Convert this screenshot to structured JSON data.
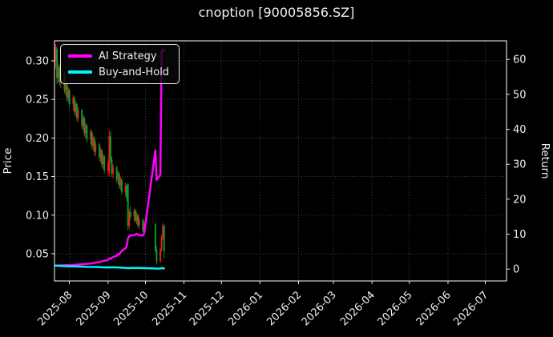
{
  "title": "cnoption [90005856.SZ]",
  "chart_data": {
    "type": "candlestick+line",
    "title": "cnoption [90005856.SZ]",
    "grid": true,
    "legend_position": "upper-left",
    "left_axis": {
      "label": "Price",
      "ticks": [
        0.05,
        0.1,
        0.15,
        0.2,
        0.25,
        0.3
      ],
      "range": [
        0.0147,
        0.3259
      ]
    },
    "right_axis": {
      "label": "Return",
      "ticks": [
        0,
        10,
        20,
        30,
        40,
        50,
        60
      ],
      "range": [
        -3.4,
        65.3
      ]
    },
    "x_axis": {
      "range": [
        "2025-07-20",
        "2026-07-18"
      ],
      "ticks": [
        {
          "label": "2025-08",
          "date": "2025-08-01"
        },
        {
          "label": "2025-09",
          "date": "2025-09-01"
        },
        {
          "label": "2025-10",
          "date": "2025-10-01"
        },
        {
          "label": "2025-11",
          "date": "2025-11-01"
        },
        {
          "label": "2025-12",
          "date": "2025-12-01"
        },
        {
          "label": "2026-01",
          "date": "2026-01-01"
        },
        {
          "label": "2026-02",
          "date": "2026-02-01"
        },
        {
          "label": "2026-03",
          "date": "2026-03-01"
        },
        {
          "label": "2026-04",
          "date": "2026-04-01"
        },
        {
          "label": "2026-05",
          "date": "2026-05-01"
        },
        {
          "label": "2026-06",
          "date": "2026-06-01"
        },
        {
          "label": "2026-07",
          "date": "2026-07-01"
        }
      ]
    },
    "colors": {
      "up": "#f21818",
      "down": "#00a52c",
      "ai": "#ff00ff",
      "buyhold": "#00f5f5",
      "grid": "#4a4a4a",
      "spine": "#ffffff",
      "text": "#f0f0f0"
    },
    "candles_columns": [
      "date",
      "open",
      "high",
      "low",
      "close"
    ],
    "candles": [
      [
        "2025-07-21",
        0.3,
        0.322,
        0.29,
        0.318
      ],
      [
        "2025-07-22",
        0.315,
        0.318,
        0.27,
        0.278
      ],
      [
        "2025-07-23",
        0.278,
        0.298,
        0.272,
        0.292
      ],
      [
        "2025-07-24",
        0.292,
        0.295,
        0.268,
        0.272
      ],
      [
        "2025-07-25",
        0.272,
        0.288,
        0.265,
        0.283
      ],
      [
        "2025-07-28",
        0.283,
        0.285,
        0.258,
        0.262
      ],
      [
        "2025-07-29",
        0.262,
        0.275,
        0.255,
        0.27
      ],
      [
        "2025-07-30",
        0.27,
        0.272,
        0.248,
        0.252
      ],
      [
        "2025-07-31",
        0.252,
        0.266,
        0.246,
        0.262
      ],
      [
        "2025-08-01",
        0.262,
        0.264,
        0.24,
        0.244
      ],
      [
        "2025-08-04",
        0.244,
        0.256,
        0.236,
        0.252
      ],
      [
        "2025-08-05",
        0.252,
        0.254,
        0.23,
        0.234
      ],
      [
        "2025-08-06",
        0.234,
        0.248,
        0.228,
        0.244
      ],
      [
        "2025-08-07",
        0.244,
        0.246,
        0.222,
        0.226
      ],
      [
        "2025-08-08",
        0.226,
        0.24,
        0.22,
        0.236
      ],
      [
        "2025-08-11",
        0.236,
        0.238,
        0.212,
        0.216
      ],
      [
        "2025-08-12",
        0.216,
        0.23,
        0.21,
        0.226
      ],
      [
        "2025-08-13",
        0.226,
        0.228,
        0.202,
        0.206
      ],
      [
        "2025-08-14",
        0.206,
        0.22,
        0.2,
        0.216
      ],
      [
        "2025-08-15",
        0.216,
        0.218,
        0.194,
        0.198
      ],
      [
        "2025-08-18",
        0.198,
        0.212,
        0.192,
        0.208
      ],
      [
        "2025-08-19",
        0.208,
        0.21,
        0.186,
        0.19
      ],
      [
        "2025-08-20",
        0.19,
        0.204,
        0.184,
        0.2
      ],
      [
        "2025-08-21",
        0.2,
        0.202,
        0.178,
        0.182
      ],
      [
        "2025-08-22",
        0.182,
        0.196,
        0.176,
        0.192
      ],
      [
        "2025-08-25",
        0.192,
        0.194,
        0.17,
        0.174
      ],
      [
        "2025-08-26",
        0.174,
        0.188,
        0.168,
        0.184
      ],
      [
        "2025-08-27",
        0.184,
        0.186,
        0.162,
        0.166
      ],
      [
        "2025-08-28",
        0.166,
        0.18,
        0.16,
        0.176
      ],
      [
        "2025-08-29",
        0.176,
        0.178,
        0.154,
        0.158
      ],
      [
        "2025-09-01",
        0.158,
        0.172,
        0.152,
        0.168
      ],
      [
        "2025-09-02",
        0.155,
        0.21,
        0.15,
        0.202
      ],
      [
        "2025-09-03",
        0.202,
        0.208,
        0.168,
        0.172
      ],
      [
        "2025-09-04",
        0.172,
        0.176,
        0.15,
        0.154
      ],
      [
        "2025-09-05",
        0.154,
        0.166,
        0.148,
        0.162
      ],
      [
        "2025-09-08",
        0.162,
        0.164,
        0.142,
        0.146
      ],
      [
        "2025-09-09",
        0.146,
        0.158,
        0.14,
        0.154
      ],
      [
        "2025-09-10",
        0.154,
        0.156,
        0.134,
        0.138
      ],
      [
        "2025-09-11",
        0.138,
        0.15,
        0.132,
        0.146
      ],
      [
        "2025-09-12",
        0.146,
        0.148,
        0.126,
        0.13
      ],
      [
        "2025-09-15",
        0.13,
        0.142,
        0.124,
        0.138
      ],
      [
        "2025-09-16",
        0.138,
        0.14,
        0.118,
        0.122
      ],
      [
        "2025-09-17",
        0.14,
        0.142,
        0.08,
        0.086
      ],
      [
        "2025-09-18",
        0.086,
        0.108,
        0.082,
        0.104
      ],
      [
        "2025-09-19",
        0.104,
        0.112,
        0.094,
        0.098
      ],
      [
        "2025-09-22",
        0.098,
        0.11,
        0.092,
        0.106
      ],
      [
        "2025-09-23",
        0.106,
        0.108,
        0.09,
        0.093
      ],
      [
        "2025-09-24",
        0.093,
        0.104,
        0.088,
        0.1
      ],
      [
        "2025-09-25",
        0.1,
        0.102,
        0.084,
        0.087
      ],
      [
        "2025-09-26",
        0.087,
        0.098,
        0.082,
        0.094
      ],
      [
        "2025-09-29",
        0.094,
        0.096,
        0.078,
        0.081
      ],
      [
        "2025-09-30",
        0.081,
        0.092,
        0.076,
        0.088
      ],
      [
        "2025-10-09",
        0.088,
        0.09,
        0.052,
        0.055
      ],
      [
        "2025-10-10",
        0.055,
        0.06,
        0.036,
        0.04
      ],
      [
        "2025-10-13",
        0.04,
        0.058,
        0.038,
        0.055
      ],
      [
        "2025-10-14",
        0.055,
        0.075,
        0.052,
        0.072
      ],
      [
        "2025-10-15",
        0.072,
        0.09,
        0.068,
        0.086
      ],
      [
        "2025-10-16",
        0.086,
        0.088,
        0.044,
        0.053
      ]
    ],
    "series": [
      {
        "name": "AI Strategy",
        "color": "#ff00ff",
        "axis": "return",
        "points": [
          [
            "2025-07-21",
            1.0
          ],
          [
            "2025-07-23",
            1.02
          ],
          [
            "2025-07-25",
            1.06
          ],
          [
            "2025-07-29",
            1.1
          ],
          [
            "2025-07-31",
            1.14
          ],
          [
            "2025-08-04",
            1.2
          ],
          [
            "2025-08-06",
            1.26
          ],
          [
            "2025-08-08",
            1.32
          ],
          [
            "2025-08-12",
            1.4
          ],
          [
            "2025-08-14",
            1.48
          ],
          [
            "2025-08-18",
            1.58
          ],
          [
            "2025-08-20",
            1.7
          ],
          [
            "2025-08-22",
            1.85
          ],
          [
            "2025-08-26",
            2.05
          ],
          [
            "2025-08-28",
            2.3
          ],
          [
            "2025-09-01",
            2.6
          ],
          [
            "2025-09-02",
            3.1
          ],
          [
            "2025-09-03",
            2.95
          ],
          [
            "2025-09-04",
            3.2
          ],
          [
            "2025-09-05",
            3.5
          ],
          [
            "2025-09-08",
            3.8
          ],
          [
            "2025-09-09",
            4.3
          ],
          [
            "2025-09-10",
            4.2
          ],
          [
            "2025-09-11",
            4.7
          ],
          [
            "2025-09-12",
            5.2
          ],
          [
            "2025-09-15",
            6.0
          ],
          [
            "2025-09-16",
            6.6
          ],
          [
            "2025-09-17",
            8.8
          ],
          [
            "2025-09-18",
            9.4
          ],
          [
            "2025-09-19",
            9.6
          ],
          [
            "2025-09-22",
            9.7
          ],
          [
            "2025-09-23",
            9.9
          ],
          [
            "2025-09-24",
            10.1
          ],
          [
            "2025-09-25",
            9.9
          ],
          [
            "2025-09-26",
            9.7
          ],
          [
            "2025-09-29",
            9.6
          ],
          [
            "2025-09-30",
            10.3
          ],
          [
            "2025-10-09",
            34.0
          ],
          [
            "2025-10-10",
            25.5
          ],
          [
            "2025-10-13",
            27.0
          ],
          [
            "2025-10-14",
            62.0
          ],
          [
            "2025-10-15",
            62.8
          ],
          [
            "2025-10-16",
            62.4
          ]
        ]
      },
      {
        "name": "Buy-and-Hold",
        "color": "#00f5f5",
        "axis": "return",
        "points": [
          [
            "2025-07-21",
            1.0
          ],
          [
            "2025-07-25",
            0.89
          ],
          [
            "2025-07-31",
            0.82
          ],
          [
            "2025-08-08",
            0.74
          ],
          [
            "2025-08-15",
            0.62
          ],
          [
            "2025-08-22",
            0.6
          ],
          [
            "2025-08-29",
            0.5
          ],
          [
            "2025-09-05",
            0.51
          ],
          [
            "2025-09-12",
            0.41
          ],
          [
            "2025-09-17",
            0.27
          ],
          [
            "2025-09-19",
            0.31
          ],
          [
            "2025-09-24",
            0.31
          ],
          [
            "2025-09-30",
            0.28
          ],
          [
            "2025-10-09",
            0.17
          ],
          [
            "2025-10-10",
            0.13
          ],
          [
            "2025-10-13",
            0.17
          ],
          [
            "2025-10-14",
            0.23
          ],
          [
            "2025-10-15",
            0.27
          ],
          [
            "2025-10-16",
            0.17
          ]
        ]
      }
    ]
  }
}
